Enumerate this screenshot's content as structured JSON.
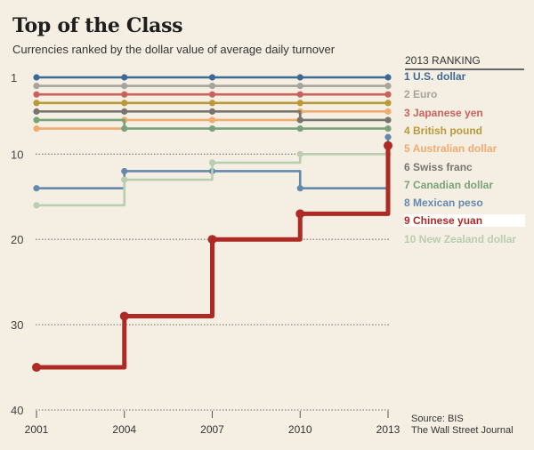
{
  "chart_data": {
    "type": "line",
    "title": "Top of the Class",
    "subtitle": "Currencies ranked by the dollar value of average daily turnover",
    "xlabel": "",
    "ylabel": "",
    "x": [
      2001,
      2004,
      2007,
      2010,
      2013
    ],
    "x_tick_labels": [
      "2001",
      "2004",
      "2007",
      "2010",
      "2013"
    ],
    "y_tick_labels": [
      "1",
      "10",
      "20",
      "30",
      "40"
    ],
    "ylim": [
      40,
      1
    ],
    "y_inverted": true,
    "grid": "dotted horizontal at 10, 20, 30, 40",
    "step": true,
    "legend_title": "2013 RANKING",
    "legend_position": "right",
    "series": [
      {
        "name": "U.S. dollar",
        "rank2013": 1,
        "color": "#3d6a94",
        "values": [
          1,
          1,
          1,
          1,
          1
        ]
      },
      {
        "name": "Euro",
        "rank2013": 2,
        "color": "#a7a49c",
        "values": [
          2,
          2,
          2,
          2,
          2
        ]
      },
      {
        "name": "Japanese yen",
        "rank2013": 3,
        "color": "#c9625c",
        "values": [
          3,
          3,
          3,
          3,
          3
        ]
      },
      {
        "name": "British pound",
        "rank2013": 4,
        "color": "#b89a3b",
        "values": [
          4,
          4,
          4,
          4,
          4
        ]
      },
      {
        "name": "Australian dollar",
        "rank2013": 5,
        "color": "#f0ab70",
        "values": [
          7,
          6,
          6,
          5,
          5
        ]
      },
      {
        "name": "Swiss franc",
        "rank2013": 6,
        "color": "#777570",
        "values": [
          5,
          5,
          5,
          6,
          6
        ]
      },
      {
        "name": "Canadian dollar",
        "rank2013": 7,
        "color": "#7aa27a",
        "values": [
          6,
          7,
          7,
          7,
          7
        ]
      },
      {
        "name": "Mexican peso",
        "rank2013": 8,
        "color": "#6589ad",
        "values": [
          14,
          12,
          12,
          14,
          8
        ]
      },
      {
        "name": "Chinese yuan",
        "rank2013": 9,
        "color": "#ad2b24",
        "values": [
          35,
          29,
          20,
          17,
          9
        ],
        "highlight": true
      },
      {
        "name": "New Zealand dollar",
        "rank2013": 10,
        "color": "#b9cdb0",
        "values": [
          16,
          13,
          11,
          10,
          10
        ]
      }
    ],
    "source": [
      "Source: BIS",
      "The Wall Street Journal"
    ]
  }
}
